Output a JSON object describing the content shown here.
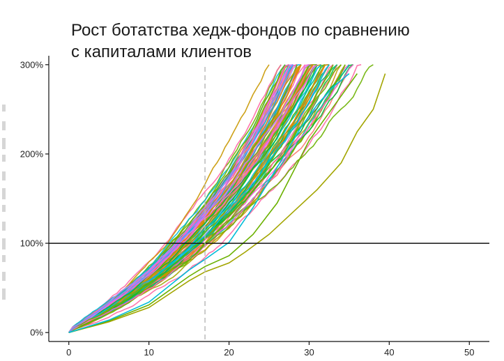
{
  "title_lines": [
    "Рост ботатства хедж-фондов по сравнению",
    "с капиталами клиентов"
  ],
  "colors": {
    "palette": [
      "#F8766D",
      "#E58700",
      "#C99800",
      "#A3A500",
      "#6BB100",
      "#00BA38",
      "#00BF7D",
      "#00C0AF",
      "#00BCD8",
      "#00B0F6",
      "#619CFF",
      "#B983FF",
      "#E76BF3",
      "#FD61D1",
      "#FF67A4"
    ],
    "reference_line": "#111111",
    "vline": "#b5b5b5"
  },
  "chart_data": {
    "type": "line",
    "title": "Рост ботатства хедж-фондов по сравнению с капиталами клиентов",
    "xlabel": "",
    "ylabel": "",
    "xlim": [
      -2.5,
      52.5
    ],
    "ylim": [
      -10,
      310
    ],
    "x_ticks": [
      0,
      10,
      20,
      30,
      40,
      50
    ],
    "y_ticks": [
      0,
      100,
      200,
      300
    ],
    "y_tick_labels": [
      "0%",
      "100%",
      "200%",
      "300%"
    ],
    "hline": 100,
    "vline": 17,
    "grid": false,
    "legend": "none",
    "series_count": 90,
    "series_note": "90 simulated paths; each starts at 0% and ends on reaching 300%, end years spread ~27–40",
    "envelope": {
      "x": [
        0,
        5,
        10,
        15,
        17,
        20,
        25,
        30,
        35,
        40
      ],
      "y_low": [
        0,
        13,
        30,
        62,
        72,
        80,
        110,
        145,
        200,
        290
      ],
      "y_median": [
        0,
        15,
        38,
        79,
        100,
        127,
        190,
        268,
        300,
        300
      ],
      "y_high": [
        0,
        20,
        48,
        100,
        125,
        160,
        240,
        300,
        300,
        300
      ]
    }
  }
}
